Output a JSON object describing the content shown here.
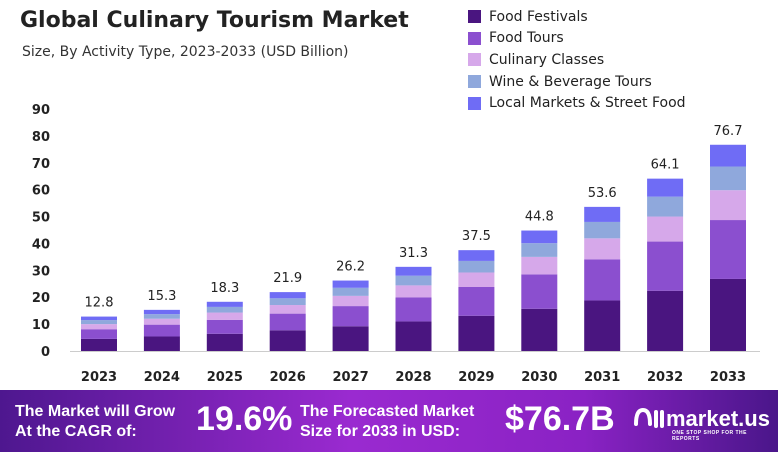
{
  "chart_data": {
    "type": "bar",
    "stacked": true,
    "title": "Global Culinary Tourism Market",
    "subtitle": "Size, By Activity Type, 2023-2033 (USD Billion)",
    "categories": [
      "2023",
      "2024",
      "2025",
      "2026",
      "2027",
      "2028",
      "2029",
      "2030",
      "2031",
      "2032",
      "2033"
    ],
    "totals": [
      "12.8",
      "15.3",
      "18.3",
      "21.9",
      "26.2",
      "31.3",
      "37.5",
      "44.8",
      "53.6",
      "64.1",
      "76.7"
    ],
    "series": [
      {
        "name": "Food Festivals",
        "color": "#4a1580",
        "values": [
          4.5,
          5.4,
          6.4,
          7.7,
          9.2,
          11.0,
          13.1,
          15.7,
          18.8,
          22.4,
          26.8
        ]
      },
      {
        "name": "Food Tours",
        "color": "#8b4fcf",
        "values": [
          3.6,
          4.4,
          5.2,
          6.2,
          7.5,
          8.9,
          10.7,
          12.8,
          15.3,
          18.3,
          21.9
        ]
      },
      {
        "name": "Culinary Classes",
        "color": "#d6a8ea",
        "values": [
          1.9,
          2.2,
          2.7,
          3.2,
          3.8,
          4.5,
          5.4,
          6.5,
          7.8,
          9.3,
          11.1
        ]
      },
      {
        "name": "Wine & Beverage Tours",
        "color": "#8fa8dc",
        "values": [
          1.5,
          1.7,
          2.1,
          2.5,
          3.0,
          3.6,
          4.3,
          5.1,
          6.1,
          7.4,
          8.8
        ]
      },
      {
        "name": "Local Markets & Street Food",
        "color": "#6f6cf5",
        "values": [
          1.3,
          1.6,
          1.9,
          2.3,
          2.7,
          3.3,
          4.0,
          4.7,
          5.6,
          6.7,
          8.1
        ]
      }
    ],
    "yticks": [
      "0",
      "10",
      "20",
      "30",
      "40",
      "50",
      "60",
      "70",
      "80",
      "90"
    ],
    "ylim": [
      0,
      90
    ],
    "grid": false,
    "legend": "top-right"
  },
  "banner": {
    "cagr_label_1": "The Market will Grow",
    "cagr_label_2": "At the CAGR of:",
    "cagr_value": "19.6%",
    "forecast_label_1": "The Forecasted Market",
    "forecast_label_2": "Size for 2033 in USD:",
    "forecast_value": "$76.7B",
    "logo_text": "market.us",
    "logo_tagline": "ONE STOP SHOP FOR THE REPORTS"
  }
}
